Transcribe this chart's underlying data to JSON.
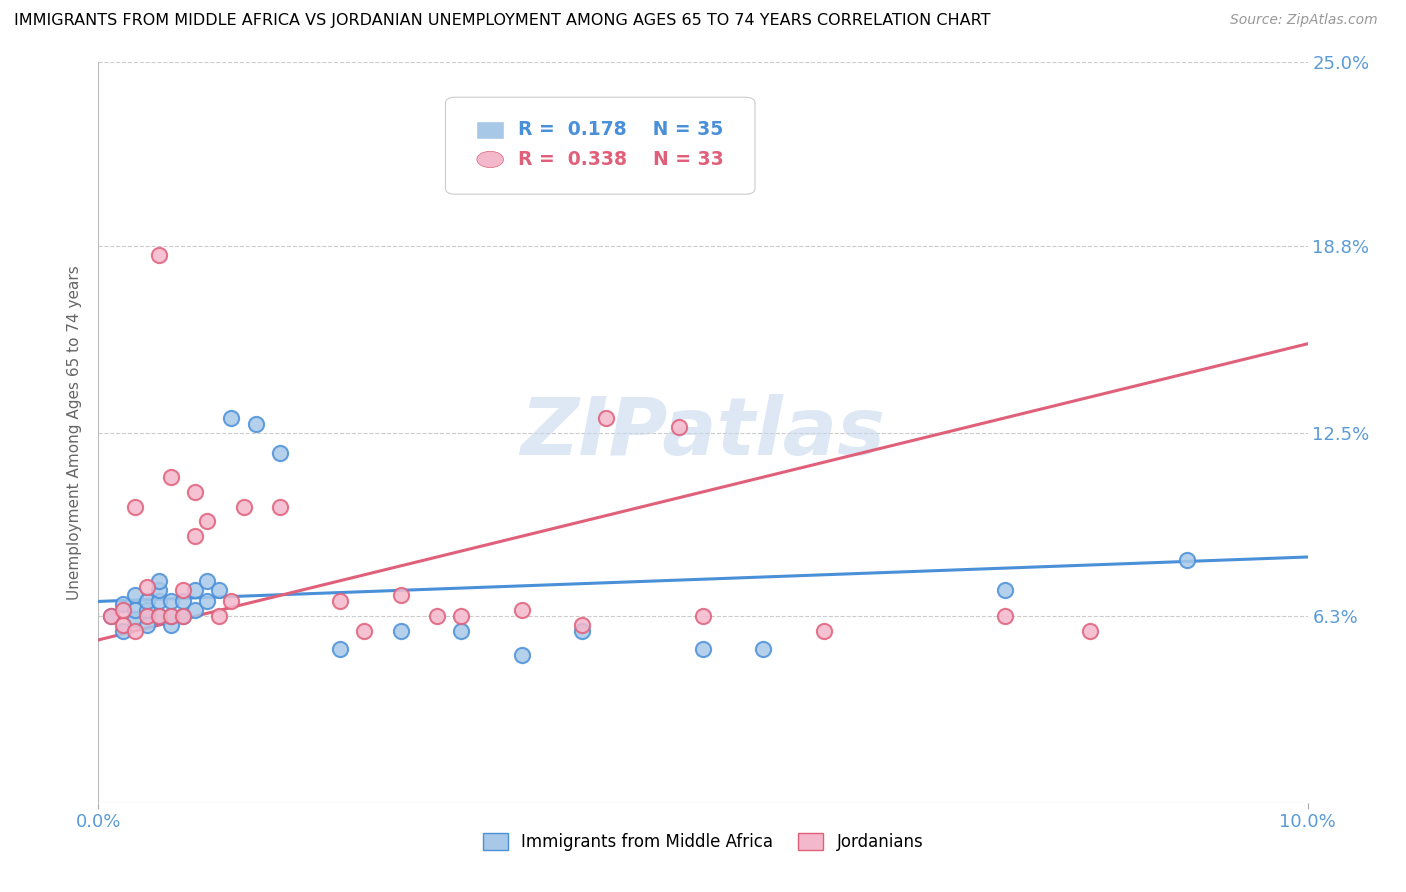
{
  "title": "IMMIGRANTS FROM MIDDLE AFRICA VS JORDANIAN UNEMPLOYMENT AMONG AGES 65 TO 74 YEARS CORRELATION CHART",
  "source": "Source: ZipAtlas.com",
  "ylabel": "Unemployment Among Ages 65 to 74 years",
  "xlim": [
    0.0,
    0.1
  ],
  "ylim": [
    0.0,
    0.25
  ],
  "x_ticks": [
    0.0,
    0.1
  ],
  "x_tick_labels": [
    "0.0%",
    "10.0%"
  ],
  "y_tick_labels": [
    "6.3%",
    "12.5%",
    "18.8%",
    "25.0%"
  ],
  "y_ticks": [
    0.063,
    0.125,
    0.188,
    0.25
  ],
  "blue_R": "0.178",
  "blue_N": "35",
  "pink_R": "0.338",
  "pink_N": "33",
  "blue_color": "#a8c8e8",
  "pink_color": "#f4b8cc",
  "blue_line_color": "#4a90d9",
  "pink_line_color": "#e0607a",
  "legend_label_blue": "Immigrants from Middle Africa",
  "legend_label_pink": "Jordanians",
  "watermark": "ZIPatlas",
  "blue_scatter_x": [
    0.001,
    0.002,
    0.002,
    0.003,
    0.003,
    0.003,
    0.004,
    0.004,
    0.004,
    0.005,
    0.005,
    0.005,
    0.005,
    0.006,
    0.006,
    0.006,
    0.007,
    0.007,
    0.008,
    0.008,
    0.009,
    0.009,
    0.01,
    0.011,
    0.013,
    0.015,
    0.02,
    0.025,
    0.03,
    0.035,
    0.04,
    0.05,
    0.055,
    0.075,
    0.09
  ],
  "blue_scatter_y": [
    0.063,
    0.058,
    0.067,
    0.062,
    0.07,
    0.065,
    0.06,
    0.065,
    0.068,
    0.063,
    0.068,
    0.072,
    0.075,
    0.06,
    0.063,
    0.068,
    0.063,
    0.068,
    0.065,
    0.072,
    0.068,
    0.075,
    0.072,
    0.13,
    0.128,
    0.118,
    0.052,
    0.058,
    0.058,
    0.05,
    0.058,
    0.052,
    0.052,
    0.072,
    0.082
  ],
  "pink_scatter_x": [
    0.001,
    0.002,
    0.002,
    0.003,
    0.003,
    0.004,
    0.004,
    0.005,
    0.005,
    0.006,
    0.006,
    0.007,
    0.007,
    0.008,
    0.008,
    0.009,
    0.01,
    0.011,
    0.012,
    0.015,
    0.02,
    0.022,
    0.025,
    0.028,
    0.03,
    0.035,
    0.04,
    0.042,
    0.048,
    0.05,
    0.06,
    0.075,
    0.082
  ],
  "pink_scatter_y": [
    0.063,
    0.06,
    0.065,
    0.058,
    0.1,
    0.063,
    0.073,
    0.063,
    0.185,
    0.063,
    0.11,
    0.063,
    0.072,
    0.09,
    0.105,
    0.095,
    0.063,
    0.068,
    0.1,
    0.1,
    0.068,
    0.058,
    0.07,
    0.063,
    0.063,
    0.065,
    0.06,
    0.13,
    0.127,
    0.063,
    0.058,
    0.063,
    0.058
  ]
}
